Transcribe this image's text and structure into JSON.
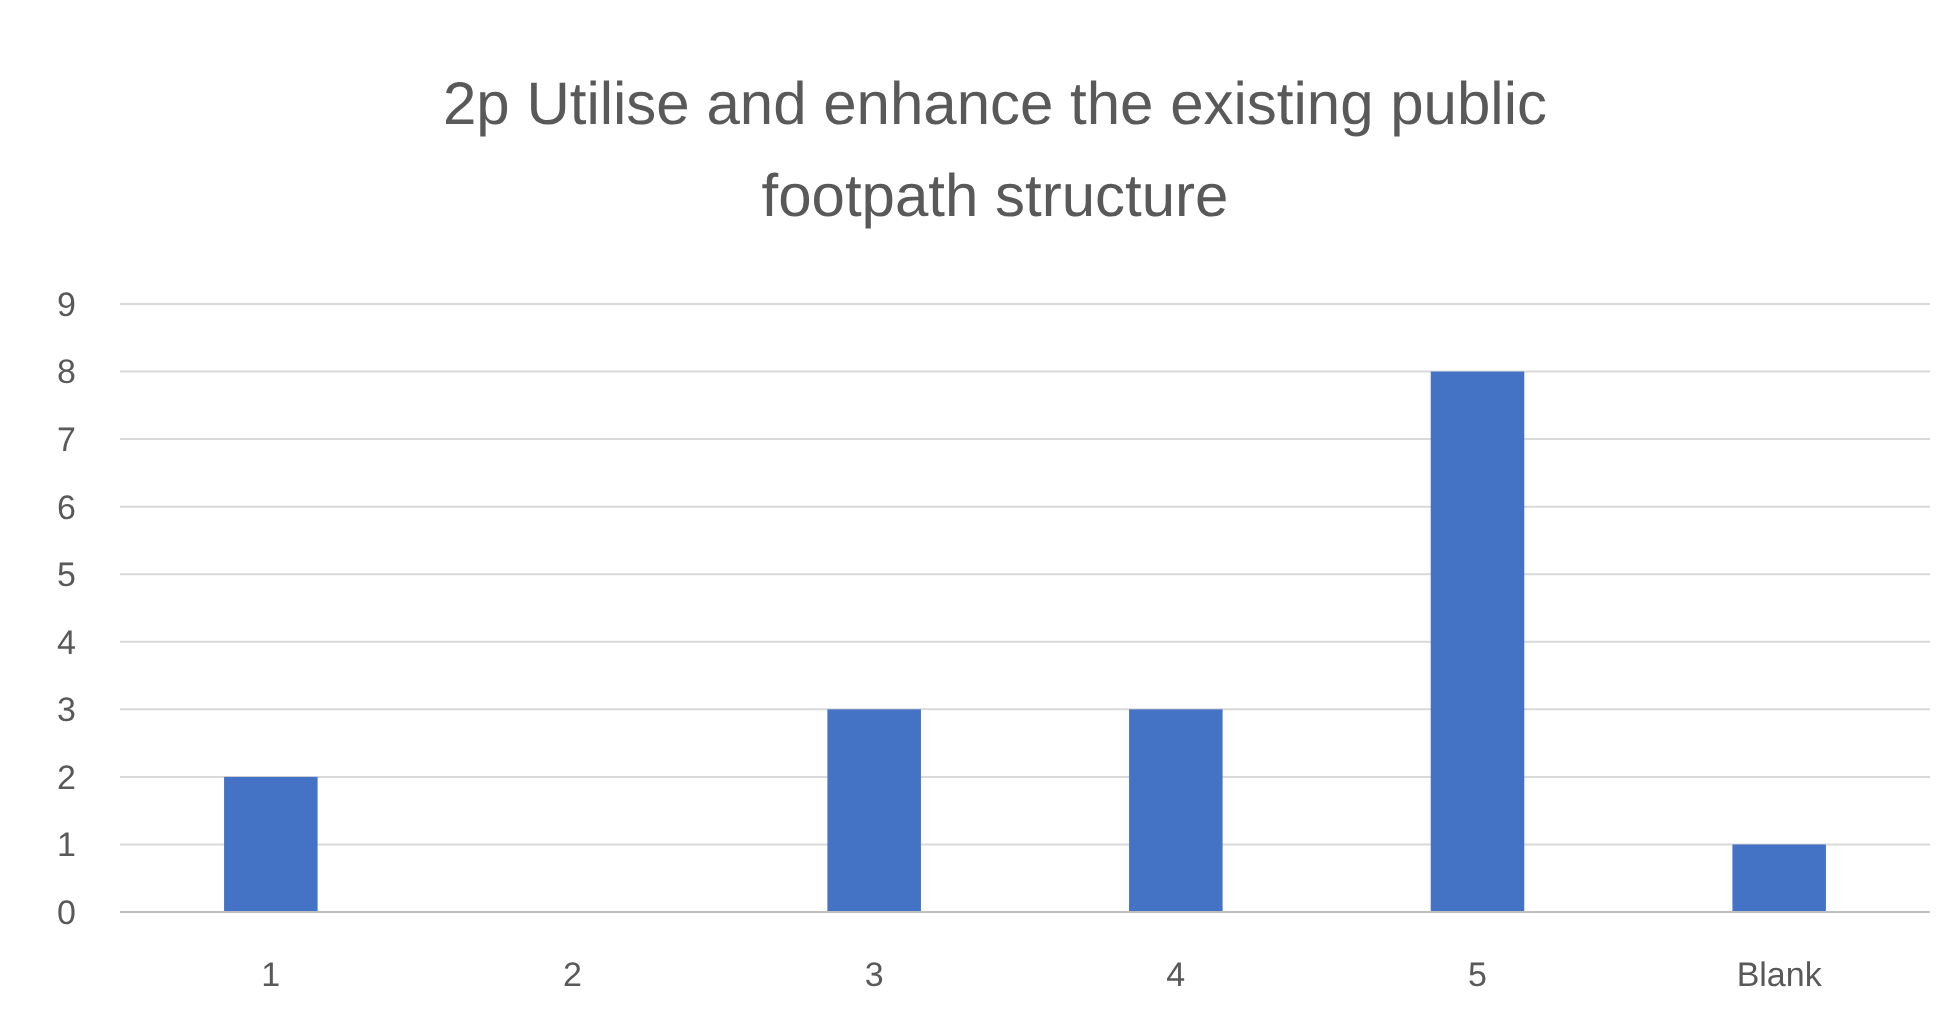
{
  "chart_data": {
    "type": "bar",
    "title": "2p Utilise and enhance the existing public footpath structure",
    "categories": [
      "1",
      "2",
      "3",
      "4",
      "5",
      "Blank"
    ],
    "values": [
      2,
      0,
      3,
      3,
      8,
      1
    ],
    "color": "#4472c4",
    "ylim": [
      0,
      9
    ],
    "yticks": [
      0,
      1,
      2,
      3,
      4,
      5,
      6,
      7,
      8,
      9
    ],
    "grid": "y"
  }
}
